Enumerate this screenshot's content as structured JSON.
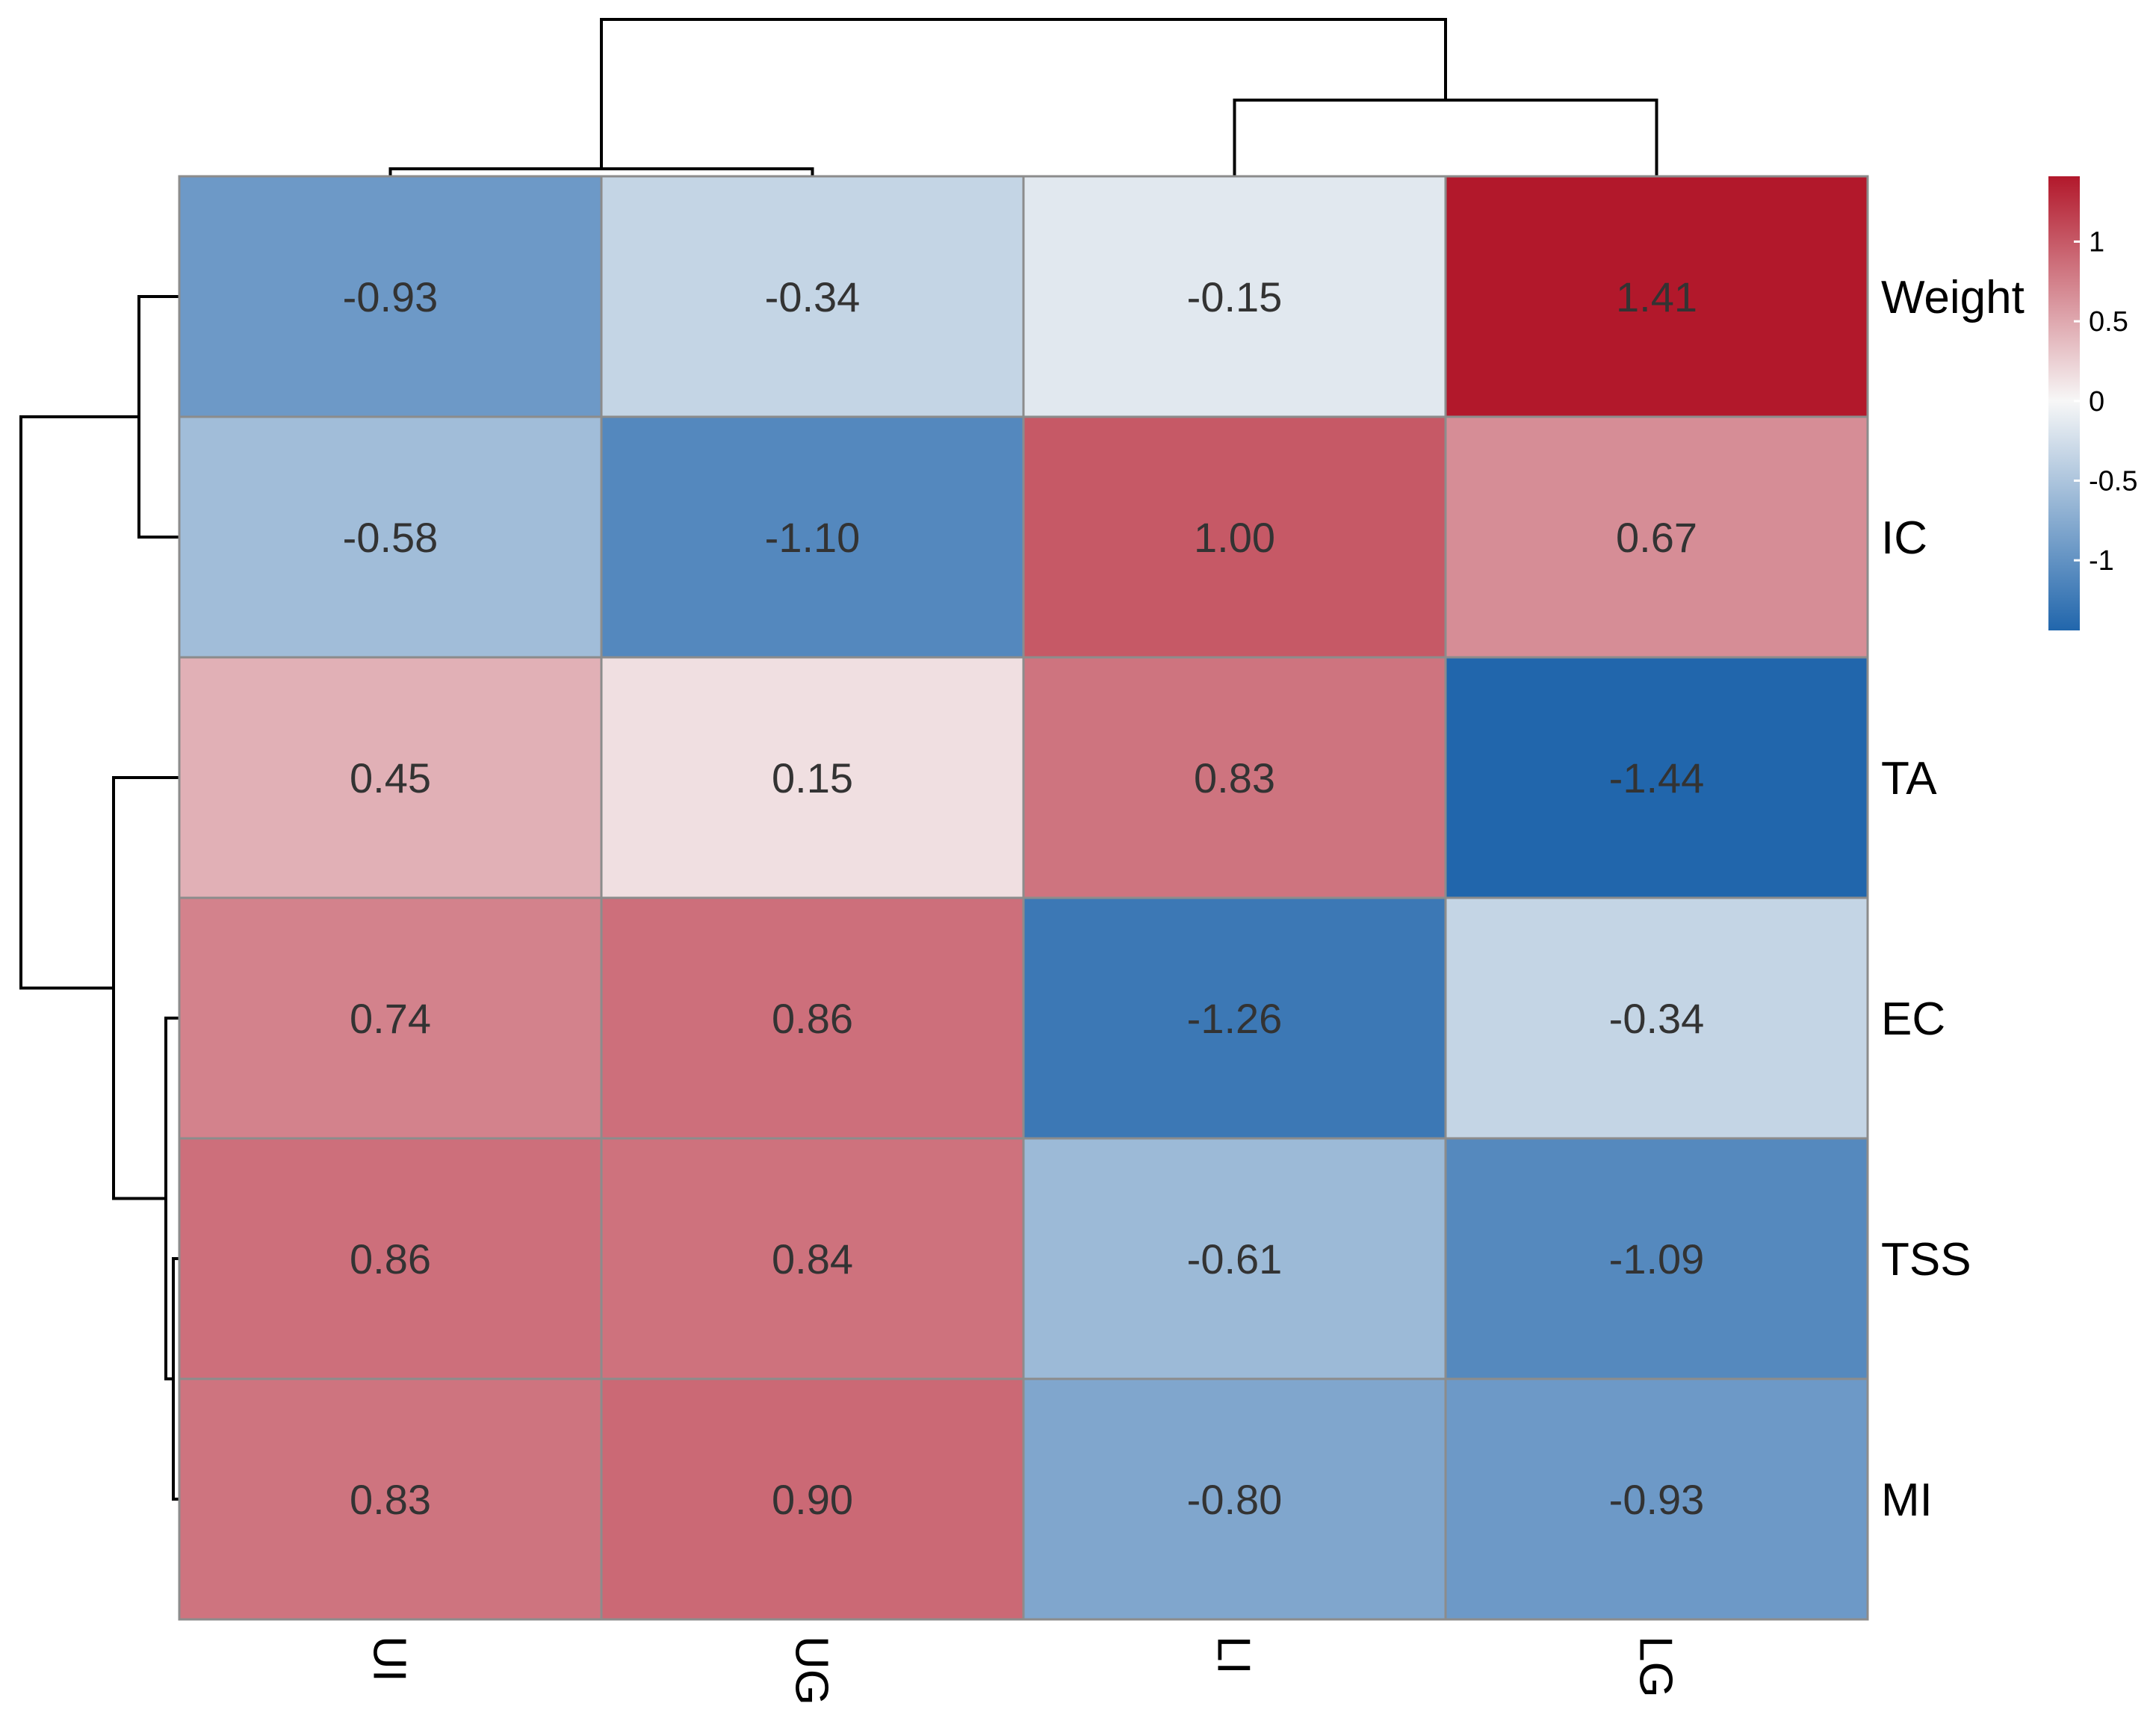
{
  "chart_data": {
    "type": "heatmap",
    "title": "",
    "rows": [
      "Weight",
      "IC",
      "TA",
      "EC",
      "TSS",
      "MI"
    ],
    "columns": [
      "UI",
      "UG",
      "LI",
      "LG"
    ],
    "values": [
      [
        -0.93,
        -0.34,
        -0.15,
        1.41
      ],
      [
        -0.58,
        -1.1,
        1.0,
        0.67
      ],
      [
        0.45,
        0.15,
        0.83,
        -1.44
      ],
      [
        0.74,
        0.86,
        -1.26,
        -0.34
      ],
      [
        0.86,
        0.84,
        -0.61,
        -1.09
      ],
      [
        0.83,
        0.9,
        -0.8,
        -0.93
      ]
    ],
    "value_labels": [
      [
        "-0.93",
        "-0.34",
        "-0.15",
        "1.41"
      ],
      [
        "-0.58",
        "-1.10",
        "1.00",
        "0.67"
      ],
      [
        "0.45",
        "0.15",
        "0.83",
        "-1.44"
      ],
      [
        "0.74",
        "0.86",
        "-1.26",
        "-0.34"
      ],
      [
        "0.86",
        "0.84",
        "-0.61",
        "-1.09"
      ],
      [
        "0.83",
        "0.90",
        "-0.80",
        "-0.93"
      ]
    ],
    "colorbar": {
      "min": -1.44,
      "max": 1.41,
      "ticks": [
        1,
        0.5,
        0,
        -0.5,
        -1
      ],
      "tick_labels": [
        "1",
        "0.5",
        "0",
        "-0.5",
        "-1"
      ],
      "colors": {
        "low": "#2166ac",
        "mid": "#f7f7f7",
        "high": "#b2182b"
      }
    },
    "dendrograms": {
      "columns": "((UI, UG), (LI, LG))",
      "rows": "((Weight, IC), (TA, (EC, (TSS, MI))))"
    }
  }
}
